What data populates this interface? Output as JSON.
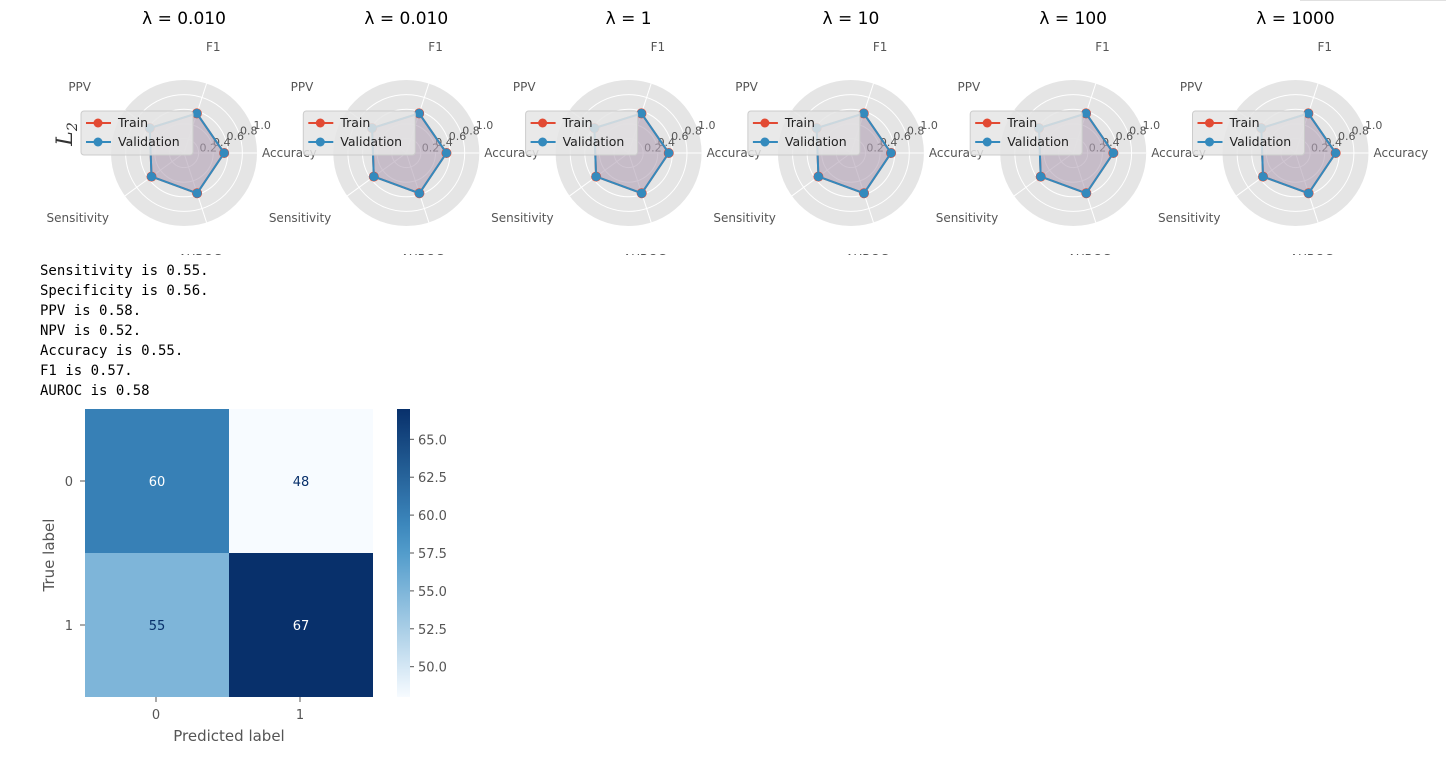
{
  "output": {
    "lines": [
      "Sensitivity is 0.55.",
      "Specificity is 0.56.",
      "PPV is 0.58.",
      "NPV is 0.52.",
      "Accuracy is 0.55.",
      "F1 is 0.57.",
      "AUROC is 0.58"
    ]
  },
  "colors": {
    "train": "#e24a33",
    "validation": "#348abd",
    "polar_bg": "#e5e5e5",
    "fill": "#b0a0b4",
    "cmap_low": "#f7fbff",
    "cmap_high": "#08306b"
  },
  "chart_data": [
    {
      "type": "radar",
      "row_label": "L_2",
      "axes": [
        "Accuracy",
        "F1",
        "PPV",
        "Sensitivity",
        "AUROC"
      ],
      "radial_ticks": [
        "0.2",
        "0.4",
        "0.6",
        "0.8",
        "1.0"
      ],
      "rlim": [
        0,
        1
      ],
      "legend": "left",
      "panels": [
        {
          "title": "λ = 0.010",
          "series": [
            {
              "name": "Train",
              "values": [
                0.55,
                0.57,
                0.58,
                0.55,
                0.58
              ]
            },
            {
              "name": "Validation",
              "values": [
                0.55,
                0.57,
                0.58,
                0.55,
                0.58
              ]
            }
          ]
        },
        {
          "title": "λ = 0.010",
          "series": [
            {
              "name": "Train",
              "values": [
                0.55,
                0.57,
                0.58,
                0.55,
                0.58
              ]
            },
            {
              "name": "Validation",
              "values": [
                0.55,
                0.57,
                0.58,
                0.55,
                0.58
              ]
            }
          ]
        },
        {
          "title": "λ = 1",
          "series": [
            {
              "name": "Train",
              "values": [
                0.55,
                0.57,
                0.58,
                0.55,
                0.58
              ]
            },
            {
              "name": "Validation",
              "values": [
                0.55,
                0.57,
                0.58,
                0.55,
                0.58
              ]
            }
          ]
        },
        {
          "title": "λ = 10",
          "series": [
            {
              "name": "Train",
              "values": [
                0.55,
                0.57,
                0.58,
                0.55,
                0.58
              ]
            },
            {
              "name": "Validation",
              "values": [
                0.55,
                0.57,
                0.58,
                0.55,
                0.58
              ]
            }
          ]
        },
        {
          "title": "λ = 100",
          "series": [
            {
              "name": "Train",
              "values": [
                0.55,
                0.57,
                0.58,
                0.55,
                0.58
              ]
            },
            {
              "name": "Validation",
              "values": [
                0.55,
                0.57,
                0.58,
                0.55,
                0.58
              ]
            }
          ]
        },
        {
          "title": "λ = 1000",
          "series": [
            {
              "name": "Train",
              "values": [
                0.55,
                0.57,
                0.58,
                0.55,
                0.58
              ]
            },
            {
              "name": "Validation",
              "values": [
                0.55,
                0.57,
                0.58,
                0.55,
                0.58
              ]
            }
          ]
        }
      ]
    },
    {
      "type": "heatmap",
      "title": "",
      "xlabel": "Predicted label",
      "ylabel": "True label",
      "x_categories": [
        "0",
        "1"
      ],
      "y_categories": [
        "0",
        "1"
      ],
      "values": [
        [
          60,
          48
        ],
        [
          55,
          67
        ]
      ],
      "colorbar_ticks": [
        "50.0",
        "52.5",
        "55.0",
        "57.5",
        "60.0",
        "62.5",
        "65.0"
      ],
      "colorbar_range": [
        48,
        67
      ]
    }
  ]
}
